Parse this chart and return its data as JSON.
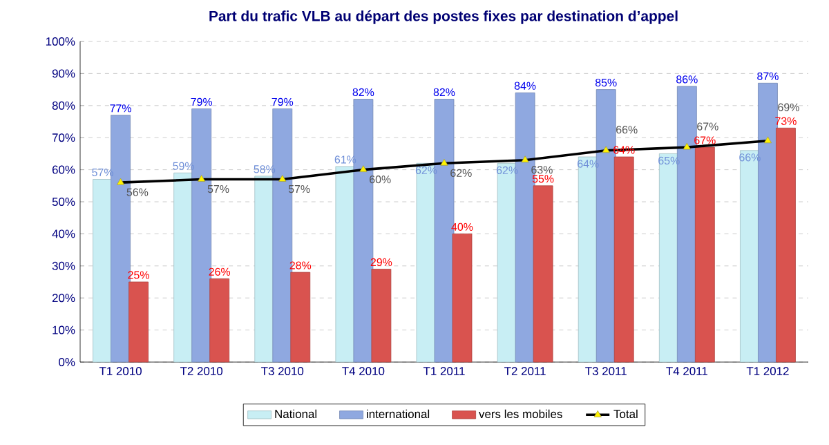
{
  "chart_data": {
    "type": "bar",
    "title": "Part du trafic VLB au départ des postes fixes par destination d’appel",
    "categories": [
      "T1 2010",
      "T2 2010",
      "T3 2010",
      "T4 2010",
      "T1 2011",
      "T2 2011",
      "T3 2011",
      "T4 2011",
      "T1 2012"
    ],
    "series": [
      {
        "name": "National",
        "color": "#c8eef4",
        "values": [
          57,
          59,
          58,
          61,
          62,
          62,
          64,
          65,
          66
        ],
        "value_labels": [
          "57%",
          "59%",
          "58%",
          "61%",
          "62%",
          "62%",
          "64%",
          "65%",
          "66%"
        ]
      },
      {
        "name": "international",
        "color": "#8fa8e0",
        "values": [
          77,
          79,
          79,
          82,
          82,
          84,
          85,
          86,
          87
        ],
        "value_labels": [
          "77%",
          "79%",
          "79%",
          "82%",
          "82%",
          "84%",
          "85%",
          "86%",
          "87%"
        ]
      },
      {
        "name": "vers les mobiles",
        "color": "#d9534f",
        "values": [
          25,
          26,
          28,
          29,
          40,
          55,
          64,
          67,
          73
        ],
        "value_labels": [
          "25%",
          "26%",
          "28%",
          "29%",
          "40%",
          "55%",
          "64%",
          "67%",
          "73%"
        ]
      },
      {
        "name": "Total",
        "type": "line",
        "color": "#000000",
        "marker": "triangle",
        "values": [
          56,
          57,
          57,
          60,
          62,
          63,
          66,
          67,
          69
        ],
        "value_labels": [
          "56%",
          "57%",
          "57%",
          "60%",
          "62%",
          "63%",
          "66%",
          "67%",
          "69%"
        ]
      }
    ],
    "ylim": [
      0,
      100
    ],
    "yticks": [
      {
        "value": 0,
        "label": "0%"
      },
      {
        "value": 10,
        "label": "10%"
      },
      {
        "value": 20,
        "label": "20%"
      },
      {
        "value": 30,
        "label": "30%"
      },
      {
        "value": 40,
        "label": "40%"
      },
      {
        "value": 50,
        "label": "50%"
      },
      {
        "value": 60,
        "label": "60%"
      },
      {
        "value": 70,
        "label": "70%"
      },
      {
        "value": 80,
        "label": "80%"
      },
      {
        "value": 90,
        "label": "90%"
      },
      {
        "value": 100,
        "label": "100%"
      }
    ],
    "grid": "y",
    "legend": "bottom"
  }
}
